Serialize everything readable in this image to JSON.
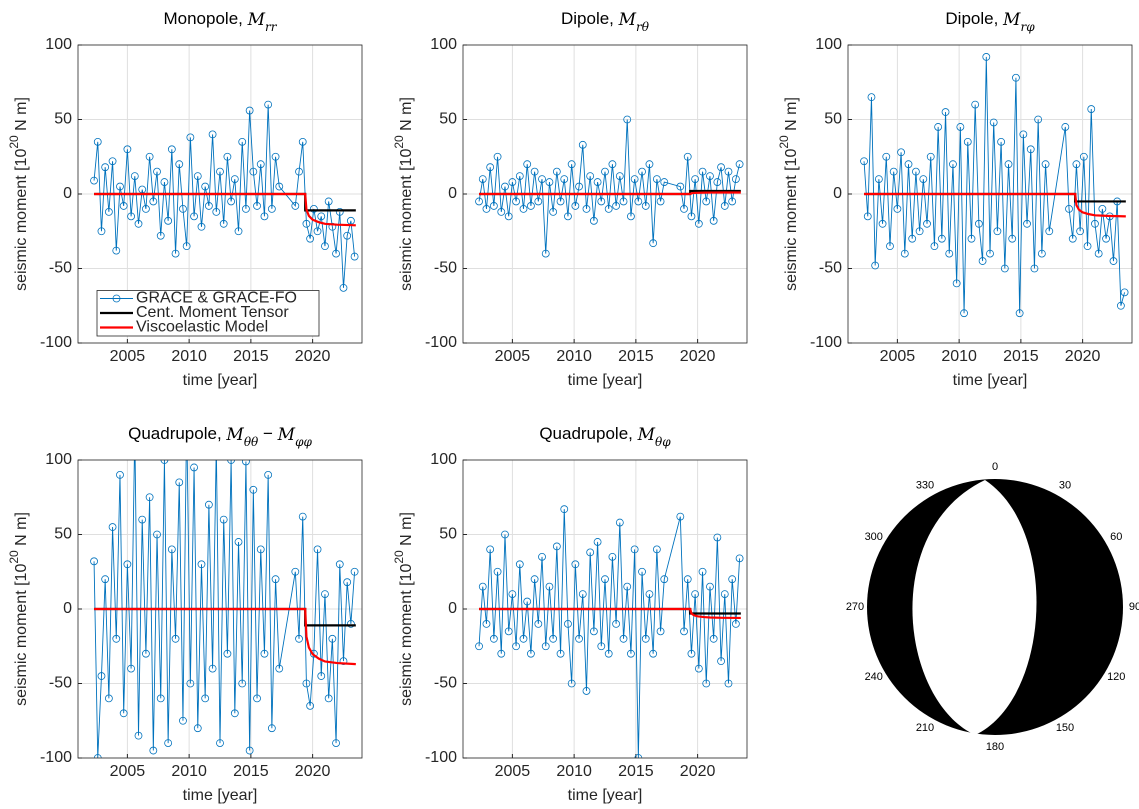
{
  "chart_data": [
    {
      "type": "line",
      "title": [
        "Monopole, ",
        "M",
        "rr"
      ],
      "xlabel": "time [year]",
      "ylabel": [
        "seismic moment [10",
        "20",
        " N m]"
      ],
      "xlim": [
        2001,
        2024
      ],
      "xticks": [
        2005,
        2010,
        2015,
        2020
      ],
      "ylim": [
        -100,
        100
      ],
      "yticks": [
        -100,
        -50,
        0,
        50,
        100
      ],
      "grid": true,
      "legend": "lower left",
      "series": [
        {
          "name": "GRACE & GRACE-FO",
          "color": "#0072bd",
          "marker": "circle",
          "x": [
            2002.3,
            2002.6,
            2002.9,
            2003.2,
            2003.5,
            2003.8,
            2004.1,
            2004.4,
            2004.7,
            2005.0,
            2005.3,
            2005.6,
            2005.9,
            2006.2,
            2006.5,
            2006.8,
            2007.1,
            2007.4,
            2007.7,
            2008.0,
            2008.3,
            2008.6,
            2008.9,
            2009.2,
            2009.5,
            2009.8,
            2010.1,
            2010.4,
            2010.7,
            2011.0,
            2011.3,
            2011.6,
            2011.9,
            2012.2,
            2012.5,
            2012.8,
            2013.1,
            2013.4,
            2013.7,
            2014.0,
            2014.3,
            2014.6,
            2014.9,
            2015.2,
            2015.5,
            2015.8,
            2016.1,
            2016.4,
            2016.7,
            2017.0,
            2017.3,
            2018.6,
            2018.9,
            2019.2,
            2019.5,
            2019.8,
            2020.1,
            2020.4,
            2020.7,
            2021.0,
            2021.3,
            2021.6,
            2021.9,
            2022.2,
            2022.5,
            2022.8,
            2023.1,
            2023.4
          ],
          "values": [
            9,
            35,
            -25,
            18,
            -12,
            22,
            -38,
            5,
            -8,
            30,
            -15,
            12,
            -20,
            3,
            -10,
            25,
            -5,
            15,
            -28,
            8,
            -18,
            30,
            -40,
            20,
            -10,
            -35,
            38,
            -15,
            12,
            -22,
            5,
            -8,
            40,
            -12,
            15,
            -20,
            25,
            -5,
            10,
            -25,
            35,
            -10,
            56,
            15,
            -8,
            20,
            -15,
            60,
            -10,
            25,
            5,
            -8,
            15,
            35,
            -20,
            -30,
            -10,
            -25,
            -15,
            -35,
            -5,
            -22,
            -40,
            -12,
            -63,
            -28,
            -18,
            -42
          ]
        },
        {
          "name": "Cent. Moment Tensor",
          "color": "#000000",
          "x": [
            2002.3,
            2019.4,
            2019.4,
            2023.5
          ],
          "values": [
            0,
            0,
            -11,
            -11
          ]
        },
        {
          "name": "Viscoelastic Model",
          "color": "#ff0000",
          "x": [
            2002.3,
            2019.4,
            2019.5,
            2019.7,
            2020,
            2020.5,
            2021,
            2022,
            2023.5
          ],
          "values": [
            0,
            0,
            -10.5,
            -14.7,
            -17.2,
            -18.9,
            -20,
            -20.6,
            -21
          ]
        }
      ]
    },
    {
      "type": "line",
      "title": [
        "Dipole, ",
        "M",
        "rθ"
      ],
      "xlabel": "time [year]",
      "ylabel": [
        "seismic moment [10",
        "20",
        " N m]"
      ],
      "xlim": [
        2001,
        2024
      ],
      "xticks": [
        2005,
        2010,
        2015,
        2020
      ],
      "ylim": [
        -100,
        100
      ],
      "yticks": [
        -100,
        -50,
        0,
        50,
        100
      ],
      "grid": true,
      "series": [
        {
          "color": "#0072bd",
          "marker": "circle",
          "x": [
            2002.3,
            2002.6,
            2002.9,
            2003.2,
            2003.5,
            2003.8,
            2004.1,
            2004.4,
            2004.7,
            2005.0,
            2005.3,
            2005.6,
            2005.9,
            2006.2,
            2006.5,
            2006.8,
            2007.1,
            2007.4,
            2007.7,
            2008.0,
            2008.3,
            2008.6,
            2008.9,
            2009.2,
            2009.5,
            2009.8,
            2010.1,
            2010.4,
            2010.7,
            2011.0,
            2011.3,
            2011.6,
            2011.9,
            2012.2,
            2012.5,
            2012.8,
            2013.1,
            2013.4,
            2013.7,
            2014.0,
            2014.3,
            2014.6,
            2014.9,
            2015.2,
            2015.5,
            2015.8,
            2016.1,
            2016.4,
            2016.7,
            2017.0,
            2017.3,
            2018.6,
            2018.9,
            2019.2,
            2019.5,
            2019.8,
            2020.1,
            2020.4,
            2020.7,
            2021.0,
            2021.3,
            2021.6,
            2021.9,
            2022.2,
            2022.5,
            2022.8,
            2023.1,
            2023.4
          ],
          "values": [
            -5,
            10,
            -10,
            18,
            -8,
            25,
            -12,
            5,
            -15,
            8,
            -5,
            12,
            -10,
            20,
            -8,
            15,
            -5,
            10,
            -40,
            8,
            -12,
            15,
            -5,
            10,
            -15,
            20,
            -8,
            5,
            33,
            -10,
            12,
            -18,
            8,
            -5,
            15,
            -10,
            20,
            -8,
            12,
            -5,
            50,
            -15,
            10,
            -5,
            15,
            -8,
            20,
            -33,
            10,
            -5,
            8,
            5,
            -10,
            25,
            -15,
            10,
            -20,
            15,
            -5,
            12,
            -18,
            8,
            18,
            -8,
            15,
            -5,
            10,
            20
          ]
        },
        {
          "color": "#000000",
          "x": [
            2002.3,
            2019.4,
            2019.4,
            2023.5
          ],
          "values": [
            0,
            0,
            2,
            2
          ]
        },
        {
          "color": "#ff0000",
          "x": [
            2002.3,
            2019.4,
            2019.5,
            2019.7,
            2020,
            2020.5,
            2021,
            2022,
            2023.5
          ],
          "values": [
            0,
            0,
            0.5,
            0.7,
            0.8,
            0.9,
            0.95,
            1,
            1
          ]
        }
      ]
    },
    {
      "type": "line",
      "title": [
        "Dipole, ",
        "M",
        "rφ"
      ],
      "xlabel": "time [year]",
      "ylabel": [
        "seismic moment [10",
        "20",
        " N m]"
      ],
      "xlim": [
        2001,
        2024
      ],
      "xticks": [
        2005,
        2010,
        2015,
        2020
      ],
      "ylim": [
        -100,
        100
      ],
      "yticks": [
        -100,
        -50,
        0,
        50,
        100
      ],
      "grid": true,
      "series": [
        {
          "color": "#0072bd",
          "marker": "circle",
          "x": [
            2002.3,
            2002.6,
            2002.9,
            2003.2,
            2003.5,
            2003.8,
            2004.1,
            2004.4,
            2004.7,
            2005.0,
            2005.3,
            2005.6,
            2005.9,
            2006.2,
            2006.5,
            2006.8,
            2007.1,
            2007.4,
            2007.7,
            2008.0,
            2008.3,
            2008.6,
            2008.9,
            2009.2,
            2009.5,
            2009.8,
            2010.1,
            2010.4,
            2010.7,
            2011.0,
            2011.3,
            2011.6,
            2011.9,
            2012.2,
            2012.5,
            2012.8,
            2013.1,
            2013.4,
            2013.7,
            2014.0,
            2014.3,
            2014.6,
            2014.9,
            2015.2,
            2015.5,
            2015.8,
            2016.1,
            2016.4,
            2016.7,
            2017.0,
            2017.3,
            2018.6,
            2018.9,
            2019.2,
            2019.5,
            2019.8,
            2020.1,
            2020.4,
            2020.7,
            2021.0,
            2021.3,
            2021.6,
            2021.9,
            2022.2,
            2022.5,
            2022.8,
            2023.1,
            2023.4
          ],
          "values": [
            22,
            -15,
            65,
            -48,
            10,
            -20,
            25,
            -35,
            15,
            -10,
            28,
            -40,
            20,
            -30,
            15,
            -25,
            10,
            -20,
            25,
            -35,
            45,
            -30,
            55,
            -40,
            20,
            -60,
            45,
            -80,
            35,
            -30,
            60,
            -20,
            -45,
            92,
            -40,
            48,
            -25,
            35,
            -50,
            20,
            -30,
            78,
            -80,
            40,
            -20,
            30,
            -50,
            50,
            -40,
            20,
            -25,
            45,
            -10,
            -30,
            20,
            -25,
            25,
            -35,
            57,
            -20,
            -40,
            -10,
            -30,
            -15,
            -45,
            -5,
            -75,
            -66
          ]
        },
        {
          "color": "#000000",
          "x": [
            2002.3,
            2019.4,
            2019.4,
            2023.5
          ],
          "values": [
            0,
            0,
            -5,
            -5
          ]
        },
        {
          "color": "#ff0000",
          "x": [
            2002.3,
            2019.4,
            2019.5,
            2019.7,
            2020,
            2020.5,
            2021,
            2022,
            2023.5
          ],
          "values": [
            0,
            0,
            -7.5,
            -10.5,
            -12.3,
            -13.5,
            -14.3,
            -14.7,
            -15
          ]
        }
      ]
    },
    {
      "type": "line",
      "title": [
        "Quadrupole, ",
        "M",
        "θθ",
        " − ",
        "M",
        "φφ"
      ],
      "xlabel": "time [year]",
      "ylabel": [
        "seismic moment [10",
        "20",
        " N m]"
      ],
      "xlim": [
        2001,
        2024
      ],
      "xticks": [
        2005,
        2010,
        2015,
        2020
      ],
      "ylim": [
        -100,
        100
      ],
      "yticks": [
        -100,
        -50,
        0,
        50,
        100
      ],
      "grid": true,
      "series": [
        {
          "color": "#0072bd",
          "marker": "circle",
          "x": [
            2002.3,
            2002.6,
            2002.9,
            2003.2,
            2003.5,
            2003.8,
            2004.1,
            2004.4,
            2004.7,
            2005.0,
            2005.3,
            2005.6,
            2005.9,
            2006.2,
            2006.5,
            2006.8,
            2007.1,
            2007.4,
            2007.7,
            2008.0,
            2008.3,
            2008.6,
            2008.9,
            2009.2,
            2009.5,
            2009.8,
            2010.1,
            2010.4,
            2010.7,
            2011.0,
            2011.3,
            2011.6,
            2011.9,
            2012.2,
            2012.5,
            2012.8,
            2013.1,
            2013.4,
            2013.7,
            2014.0,
            2014.3,
            2014.6,
            2014.9,
            2015.2,
            2015.5,
            2015.8,
            2016.1,
            2016.4,
            2016.7,
            2017.0,
            2017.3,
            2018.6,
            2018.9,
            2019.2,
            2019.5,
            2019.8,
            2020.1,
            2020.4,
            2020.7,
            2021.0,
            2021.3,
            2021.6,
            2021.9,
            2022.2,
            2022.5,
            2022.8,
            2023.1,
            2023.4
          ],
          "values": [
            32,
            -100,
            -45,
            20,
            -60,
            55,
            -20,
            90,
            -70,
            30,
            -40,
            120,
            -85,
            60,
            -30,
            75,
            -95,
            50,
            -60,
            100,
            -90,
            40,
            -20,
            85,
            -75,
            130,
            -50,
            95,
            -80,
            30,
            -60,
            70,
            -40,
            110,
            -90,
            60,
            -30,
            100,
            -70,
            45,
            -50,
            99,
            -95,
            80,
            -60,
            40,
            -30,
            90,
            -80,
            20,
            -40,
            25,
            -20,
            62,
            -50,
            -65,
            -30,
            40,
            -45,
            10,
            -60,
            -20,
            -90,
            30,
            -35,
            18,
            -10,
            25
          ]
        },
        {
          "color": "#000000",
          "x": [
            2002.3,
            2019.4,
            2019.4,
            2023.5
          ],
          "values": [
            0,
            0,
            -11,
            -11
          ]
        },
        {
          "color": "#ff0000",
          "x": [
            2002.3,
            2019.4,
            2019.5,
            2019.7,
            2020,
            2020.5,
            2021,
            2022,
            2023.5
          ],
          "values": [
            0,
            0,
            -18.5,
            -25.9,
            -30.3,
            -33.3,
            -35.2,
            -36.3,
            -37
          ]
        }
      ]
    },
    {
      "type": "line",
      "title": [
        "Quadrupole, ",
        "M",
        "θφ"
      ],
      "xlabel": "time [year]",
      "ylabel": [
        "seismic moment [10",
        "20",
        " N m]"
      ],
      "xlim": [
        2001,
        2024
      ],
      "xticks": [
        2005,
        2010,
        2015,
        2020
      ],
      "ylim": [
        -100,
        100
      ],
      "yticks": [
        -100,
        -50,
        0,
        50,
        100
      ],
      "grid": true,
      "series": [
        {
          "color": "#0072bd",
          "marker": "circle",
          "x": [
            2002.3,
            2002.6,
            2002.9,
            2003.2,
            2003.5,
            2003.8,
            2004.1,
            2004.4,
            2004.7,
            2005.0,
            2005.3,
            2005.6,
            2005.9,
            2006.2,
            2006.5,
            2006.8,
            2007.1,
            2007.4,
            2007.7,
            2008.0,
            2008.3,
            2008.6,
            2008.9,
            2009.2,
            2009.5,
            2009.8,
            2010.1,
            2010.4,
            2010.7,
            2011.0,
            2011.3,
            2011.6,
            2011.9,
            2012.2,
            2012.5,
            2012.8,
            2013.1,
            2013.4,
            2013.7,
            2014.0,
            2014.3,
            2014.6,
            2014.9,
            2015.2,
            2015.5,
            2015.8,
            2016.1,
            2016.4,
            2016.7,
            2017.0,
            2017.3,
            2018.6,
            2018.9,
            2019.2,
            2019.5,
            2019.8,
            2020.1,
            2020.4,
            2020.7,
            2021.0,
            2021.3,
            2021.6,
            2021.9,
            2022.2,
            2022.5,
            2022.8,
            2023.1,
            2023.4
          ],
          "values": [
            -25,
            15,
            -10,
            40,
            -20,
            25,
            -30,
            50,
            -15,
            10,
            -25,
            30,
            -20,
            5,
            -30,
            20,
            -10,
            35,
            -25,
            15,
            -20,
            42,
            -30,
            67,
            -10,
            -50,
            30,
            -20,
            10,
            -55,
            38,
            -15,
            45,
            -25,
            20,
            -30,
            35,
            -10,
            58,
            -20,
            15,
            -30,
            40,
            -100,
            25,
            -20,
            10,
            -30,
            40,
            -15,
            20,
            62,
            -15,
            20,
            -30,
            10,
            -40,
            25,
            -50,
            15,
            -20,
            48,
            -35,
            10,
            -50,
            20,
            -10,
            34
          ]
        },
        {
          "color": "#000000",
          "x": [
            2002.3,
            2019.4,
            2019.4,
            2023.5
          ],
          "values": [
            0,
            0,
            -3,
            -3
          ]
        },
        {
          "color": "#ff0000",
          "x": [
            2002.3,
            2019.4,
            2019.5,
            2019.7,
            2020,
            2020.5,
            2021,
            2022,
            2023.5
          ],
          "values": [
            0,
            0,
            -3,
            -4.2,
            -4.9,
            -5.4,
            -5.7,
            -5.9,
            -6
          ]
        }
      ]
    }
  ],
  "beachball": {
    "azimuth_ticks": [
      0,
      30,
      60,
      90,
      120,
      150,
      180,
      210,
      240,
      270,
      300,
      330
    ]
  }
}
